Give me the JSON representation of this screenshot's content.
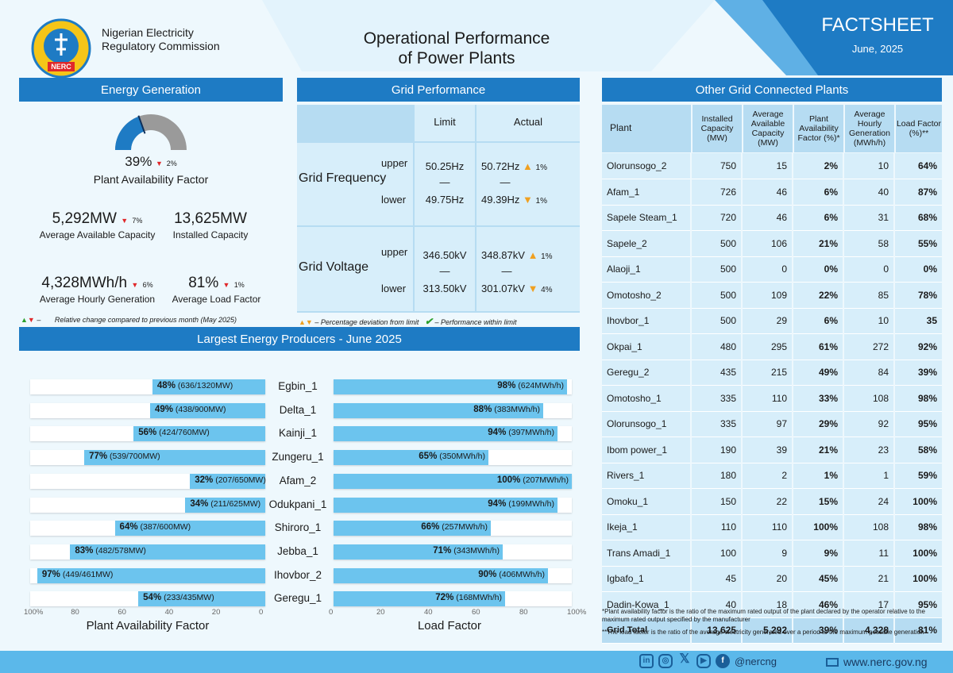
{
  "header": {
    "org_line1": "Nigerian Electricity",
    "org_line2": "Regulatory Commission",
    "logo_text": "NERC",
    "title_line1": "Operational Performance",
    "title_line2": "of Power Plants",
    "factsheet": "FACTSHEET",
    "date": "June, 2025"
  },
  "energy": {
    "title": "Energy Generation",
    "gauge_value": 0.39,
    "paf_value": "39%",
    "paf_change": "2%",
    "paf_label": "Plant Availability Factor",
    "avail_value": "5,292MW",
    "avail_change": "7%",
    "avail_label": "Average Available Capacity",
    "inst_value": "13,625MW",
    "inst_label": "Installed Capacity",
    "hourly_value": "4,328MWh/h",
    "hourly_change": "6%",
    "hourly_label": "Average Hourly Generation",
    "lf_value": "81%",
    "lf_change": "1%",
    "lf_label": "Average Load Factor",
    "legend": "Relative change compared to previous month (May 2025)"
  },
  "grid": {
    "title": "Grid Performance",
    "col_limit": "Limit",
    "col_actual": "Actual",
    "freq_label": "Grid Frequency",
    "volt_label": "Grid Voltage",
    "upper": "upper",
    "lower": "lower",
    "dash": "—",
    "freq_upper_limit": "50.25Hz",
    "freq_lower_limit": "49.75Hz",
    "freq_upper_actual": "50.72Hz",
    "freq_upper_dev": "1%",
    "freq_lower_actual": "49.39Hz",
    "freq_lower_dev": "1%",
    "volt_upper_limit": "346.50kV",
    "volt_lower_limit": "313.50kV",
    "volt_upper_actual": "348.87kV",
    "volt_upper_dev": "1%",
    "volt_lower_actual": "301.07kV",
    "volt_lower_dev": "4%",
    "legend1": "Percentage deviation from limit",
    "legend2": "Performance within limit"
  },
  "producers": {
    "title": "Largest Energy Producers - June 2025",
    "paf_axis_label": "Plant Availability Factor",
    "lf_axis_label": "Load Factor",
    "paf_ticks": [
      "100%",
      "80",
      "60",
      "40",
      "20",
      "0"
    ],
    "lf_ticks": [
      "0",
      "20",
      "40",
      "60",
      "80",
      "100%"
    ],
    "rows": [
      {
        "name": "Egbin_1",
        "paf": 48,
        "paf_pct": "48%",
        "paf_detail": "(636/1320MW)",
        "lf": 98,
        "lf_pct": "98%",
        "lf_detail": "(624MWh/h)"
      },
      {
        "name": "Delta_1",
        "paf": 49,
        "paf_pct": "49%",
        "paf_detail": "(438/900MW)",
        "lf": 88,
        "lf_pct": "88%",
        "lf_detail": "(383MWh/h)"
      },
      {
        "name": "Kainji_1",
        "paf": 56,
        "paf_pct": "56%",
        "paf_detail": "(424/760MW)",
        "lf": 94,
        "lf_pct": "94%",
        "lf_detail": "(397MWh/h)"
      },
      {
        "name": "Zungeru_1",
        "paf": 77,
        "paf_pct": "77%",
        "paf_detail": "(539/700MW)",
        "lf": 65,
        "lf_pct": "65%",
        "lf_detail": "(350MWh/h)"
      },
      {
        "name": "Afam_2",
        "paf": 32,
        "paf_pct": "32%",
        "paf_detail": "(207/650MW)",
        "lf": 100,
        "lf_pct": "100%",
        "lf_detail": "(207MWh/h)"
      },
      {
        "name": "Odukpani_1",
        "paf": 34,
        "paf_pct": "34%",
        "paf_detail": "(211/625MW)",
        "lf": 94,
        "lf_pct": "94%",
        "lf_detail": "(199MWh/h)"
      },
      {
        "name": "Shiroro_1",
        "paf": 64,
        "paf_pct": "64%",
        "paf_detail": "(387/600MW)",
        "lf": 66,
        "lf_pct": "66%",
        "lf_detail": "(257MWh/h)"
      },
      {
        "name": "Jebba_1",
        "paf": 83,
        "paf_pct": "83%",
        "paf_detail": "(482/578MW)",
        "lf": 71,
        "lf_pct": "71%",
        "lf_detail": "(343MWh/h)"
      },
      {
        "name": "Ihovbor_2",
        "paf": 97,
        "paf_pct": "97%",
        "paf_detail": "(449/461MW)",
        "lf": 90,
        "lf_pct": "90%",
        "lf_detail": "(406MWh/h)"
      },
      {
        "name": "Geregu_1",
        "paf": 54,
        "paf_pct": "54%",
        "paf_detail": "(233/435MW)",
        "lf": 72,
        "lf_pct": "72%",
        "lf_detail": "(168MWh/h)"
      }
    ]
  },
  "other": {
    "title": "Other Grid Connected Plants",
    "headers": [
      "Plant",
      "Installed Capacity (MW)",
      "Average Available Capacity (MW)",
      "Plant Availability Factor (%)*",
      "Average Hourly Generation (MWh/h)",
      "Load Factor (%)**"
    ],
    "rows": [
      [
        "Olorunsogo_2",
        "750",
        "15",
        "2%",
        "10",
        "64%"
      ],
      [
        "Afam_1",
        "726",
        "46",
        "6%",
        "40",
        "87%"
      ],
      [
        "Sapele Steam_1",
        "720",
        "46",
        "6%",
        "31",
        "68%"
      ],
      [
        "Sapele_2",
        "500",
        "106",
        "21%",
        "58",
        "55%"
      ],
      [
        "Alaoji_1",
        "500",
        "0",
        "0%",
        "0",
        "0%"
      ],
      [
        "Omotosho_2",
        "500",
        "109",
        "22%",
        "85",
        "78%"
      ],
      [
        "Ihovbor_1",
        "500",
        "29",
        "6%",
        "10",
        "35"
      ],
      [
        "Okpai_1",
        "480",
        "295",
        "61%",
        "272",
        "92%"
      ],
      [
        "Geregu_2",
        "435",
        "215",
        "49%",
        "84",
        "39%"
      ],
      [
        "Omotosho_1",
        "335",
        "110",
        "33%",
        "108",
        "98%"
      ],
      [
        "Olorunsogo_1",
        "335",
        "97",
        "29%",
        "92",
        "95%"
      ],
      [
        "Ibom power_1",
        "190",
        "39",
        "21%",
        "23",
        "58%"
      ],
      [
        "Rivers_1",
        "180",
        "2",
        "1%",
        "1",
        "59%"
      ],
      [
        "Omoku_1",
        "150",
        "22",
        "15%",
        "24",
        "100%"
      ],
      [
        "Ikeja_1",
        "110",
        "110",
        "100%",
        "108",
        "98%"
      ],
      [
        "Trans Amadi_1",
        "100",
        "9",
        "9%",
        "11",
        "100%"
      ],
      [
        "Igbafo_1",
        "45",
        "20",
        "45%",
        "21",
        "100%"
      ],
      [
        "Dadin-Kowa_1",
        "40",
        "18",
        "46%",
        "17",
        "95%"
      ]
    ],
    "total": [
      "Grid Total",
      "13,625",
      "5,292",
      "39%",
      "4,328",
      "81%"
    ],
    "note1": "*Plant availability factor is the ratio of the maximum rated output of the plant declared by the operator relative to the maximum rated output specified by the manufacturer",
    "note2": "**The load factor is the ratio of the average electricity generated over a period to the maximum possible generation"
  },
  "footer": {
    "handle": "@nercng",
    "website": "www.nerc.gov.ng",
    "icons": [
      "linkedin-icon",
      "instagram-icon",
      "x-icon",
      "youtube-icon",
      "facebook-icon",
      "web-icon"
    ]
  },
  "colors": {
    "accent": "#1e7bc4",
    "light": "#d7eefa",
    "bar": "#6cc4ee",
    "down": "#e0282a",
    "up": "#f0a020"
  }
}
